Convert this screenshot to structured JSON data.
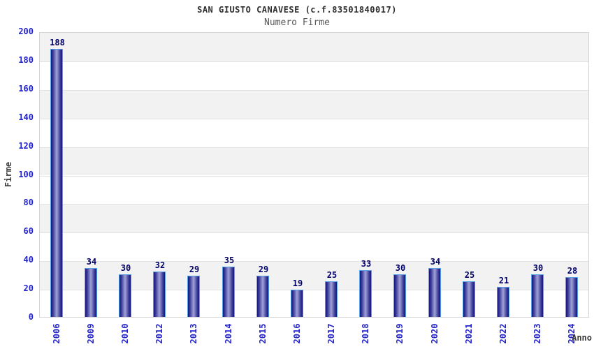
{
  "chart_data": {
    "type": "bar",
    "title": "SAN GIUSTO CANAVESE (c.f.83501840017)",
    "subtitle": "Numero Firme",
    "xlabel": "Anno",
    "ylabel": "Firme",
    "categories": [
      "2006",
      "2009",
      "2010",
      "2012",
      "2013",
      "2014",
      "2015",
      "2016",
      "2017",
      "2018",
      "2019",
      "2020",
      "2021",
      "2022",
      "2023",
      "2024"
    ],
    "values": [
      188,
      34,
      30,
      32,
      29,
      35,
      29,
      19,
      25,
      33,
      30,
      34,
      25,
      21,
      30,
      28
    ],
    "ylim": [
      0,
      200
    ],
    "ytick_step": 20,
    "yticks": [
      0,
      20,
      40,
      60,
      80,
      100,
      120,
      140,
      160,
      180,
      200
    ],
    "grid": true,
    "legend_position": "none",
    "colors": {
      "bar_edge": "#15157a",
      "bar_mid": "#9c9cd2",
      "bar_outline": "#55a0e6",
      "value_label": "#00006b",
      "tick_label": "#2424cc",
      "axis_text": "#3a3a3a",
      "band_gray": "#f2f2f2",
      "gridline": "#e2e2e2",
      "plot_border": "#d4d4d4",
      "title": "#2d2d2d",
      "subtitle": "#585858"
    }
  }
}
